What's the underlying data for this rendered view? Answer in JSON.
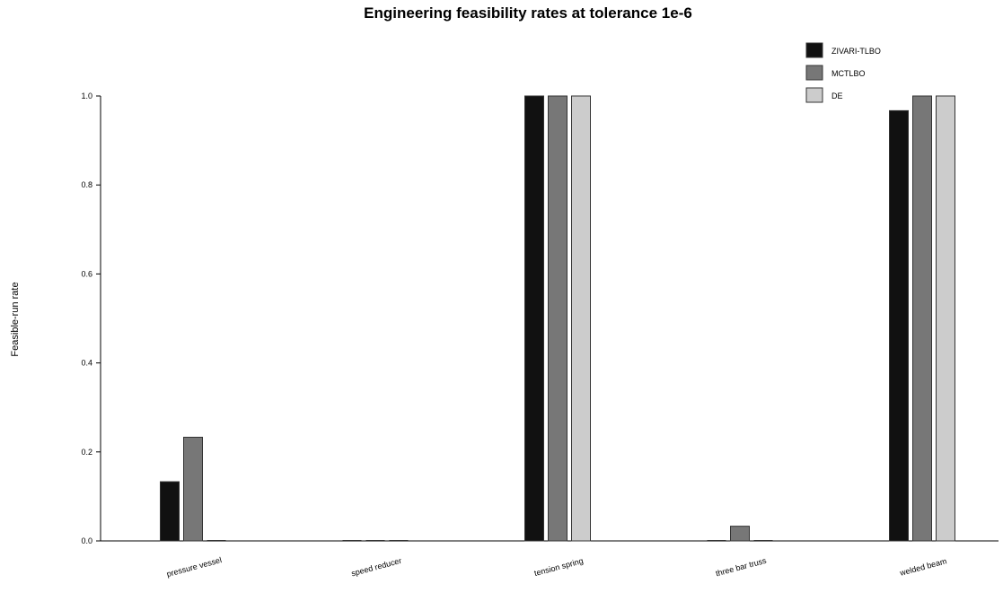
{
  "chart_data": {
    "type": "bar",
    "title": "Engineering feasibility rates at tolerance 1e-6",
    "xlabel": "",
    "ylabel": "Feasible-run rate",
    "ylim": [
      0,
      1.0
    ],
    "yticks": [
      "0.0",
      "0.2",
      "0.4",
      "0.6",
      "0.8",
      "1.0"
    ],
    "categories": [
      "pressure vessel",
      "speed reducer",
      "tension spring",
      "three bar truss",
      "welded beam"
    ],
    "series": [
      {
        "name": "ZIVARI-TLBO",
        "color": "#111111",
        "values": [
          0.133,
          0.0,
          1.0,
          0.0,
          0.967
        ]
      },
      {
        "name": "MCTLBO",
        "color": "#777777",
        "values": [
          0.233,
          0.0,
          1.0,
          0.033,
          1.0
        ]
      },
      {
        "name": "DE",
        "color": "#cccccc",
        "values": [
          0.0,
          0.0,
          1.0,
          0.0,
          1.0
        ]
      }
    ],
    "grid": false,
    "legend_position": "top-right"
  }
}
